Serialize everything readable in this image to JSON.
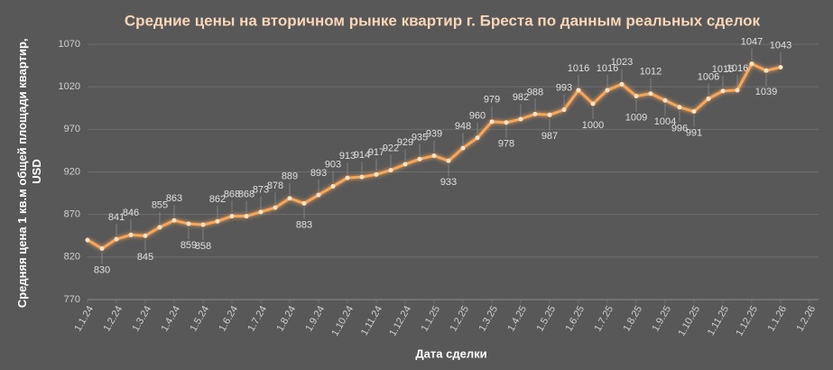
{
  "chart_data": {
    "type": "line",
    "title": "Средние цены на вторичном рынке квартир г. Бреста по данным реальных сделок",
    "xlabel": "Дата сделки",
    "ylabel": [
      "Средняя цена 1 кв.м общей площади квартир,",
      "USD"
    ],
    "xlim": [
      0,
      25
    ],
    "xticks": [
      {
        "value": 0,
        "label": "1.1.24"
      },
      {
        "value": 1,
        "label": "1.2.24"
      },
      {
        "value": 2,
        "label": "1.3.24"
      },
      {
        "value": 3,
        "label": "1.4.24"
      },
      {
        "value": 4,
        "label": "1.5.24"
      },
      {
        "value": 5,
        "label": "1.6.24"
      },
      {
        "value": 6,
        "label": "1.7.24"
      },
      {
        "value": 7,
        "label": "1.8.24"
      },
      {
        "value": 8,
        "label": "1.9.24"
      },
      {
        "value": 9,
        "label": "1.10.24"
      },
      {
        "value": 10,
        "label": "1.11.24"
      },
      {
        "value": 11,
        "label": "1.12.24"
      },
      {
        "value": 12,
        "label": "1.1.25"
      },
      {
        "value": 13,
        "label": "1.2.25"
      },
      {
        "value": 14,
        "label": "1.3.25"
      },
      {
        "value": 15,
        "label": "1.4.25"
      },
      {
        "value": 16,
        "label": "1.5.25"
      },
      {
        "value": 17,
        "label": "1.6.25"
      },
      {
        "value": 18,
        "label": "1.7.25"
      },
      {
        "value": 19,
        "label": "1.8.25"
      },
      {
        "value": 20,
        "label": "1.9.25"
      },
      {
        "value": 21,
        "label": "1.10.25"
      },
      {
        "value": 22,
        "label": "1.11.25"
      },
      {
        "value": 23,
        "label": "1.12.25"
      },
      {
        "value": 24,
        "label": "1.1.26"
      },
      {
        "value": 25,
        "label": "1.2.26"
      }
    ],
    "ylim": [
      770,
      1070
    ],
    "yticks": [
      770,
      820,
      870,
      920,
      970,
      1020,
      1070
    ],
    "grid": true,
    "color": "#f7a55a",
    "x": [
      0,
      0.5,
      1,
      1.5,
      2,
      2.5,
      3,
      3.5,
      4,
      4.5,
      5,
      5.5,
      6,
      6.5,
      7,
      7.5,
      8,
      8.5,
      9,
      9.5,
      10,
      10.5,
      11,
      11.5,
      12,
      12.5,
      13,
      13.5,
      14,
      14.5,
      15,
      15.5,
      16,
      16.5,
      17,
      17.5,
      18,
      18.5,
      19,
      19.5,
      20,
      20.5,
      21,
      21.5,
      22,
      22.5,
      23,
      23.5,
      24
    ],
    "values": [
      840,
      830,
      841,
      846,
      845,
      855,
      863,
      859,
      858,
      862,
      868,
      868,
      873,
      878,
      889,
      883,
      893,
      903,
      913,
      914,
      917,
      922,
      929,
      935,
      939,
      933,
      948,
      960,
      979,
      978,
      982,
      988,
      987,
      993,
      1016,
      1000,
      1016,
      1023,
      1009,
      1012,
      1004,
      996,
      991,
      1006,
      1015,
      1016,
      1047,
      1039,
      1043
    ],
    "value_labels": [
      null,
      "830",
      "841",
      "846",
      "845",
      "855",
      "863",
      "859",
      "858",
      "862",
      "868",
      "868",
      "873",
      "878",
      "889",
      "883",
      "893",
      "903",
      "913",
      "914",
      "917",
      "922",
      "929",
      "935",
      "939",
      "933",
      "948",
      "960",
      "979",
      "978",
      "982",
      "988",
      "987",
      "993",
      "1016",
      "1000",
      "1016",
      "1023",
      "1009",
      "1012",
      "1004",
      "996",
      "991",
      "1006",
      "1015",
      "1016",
      "1047",
      "1039",
      "1043"
    ]
  }
}
